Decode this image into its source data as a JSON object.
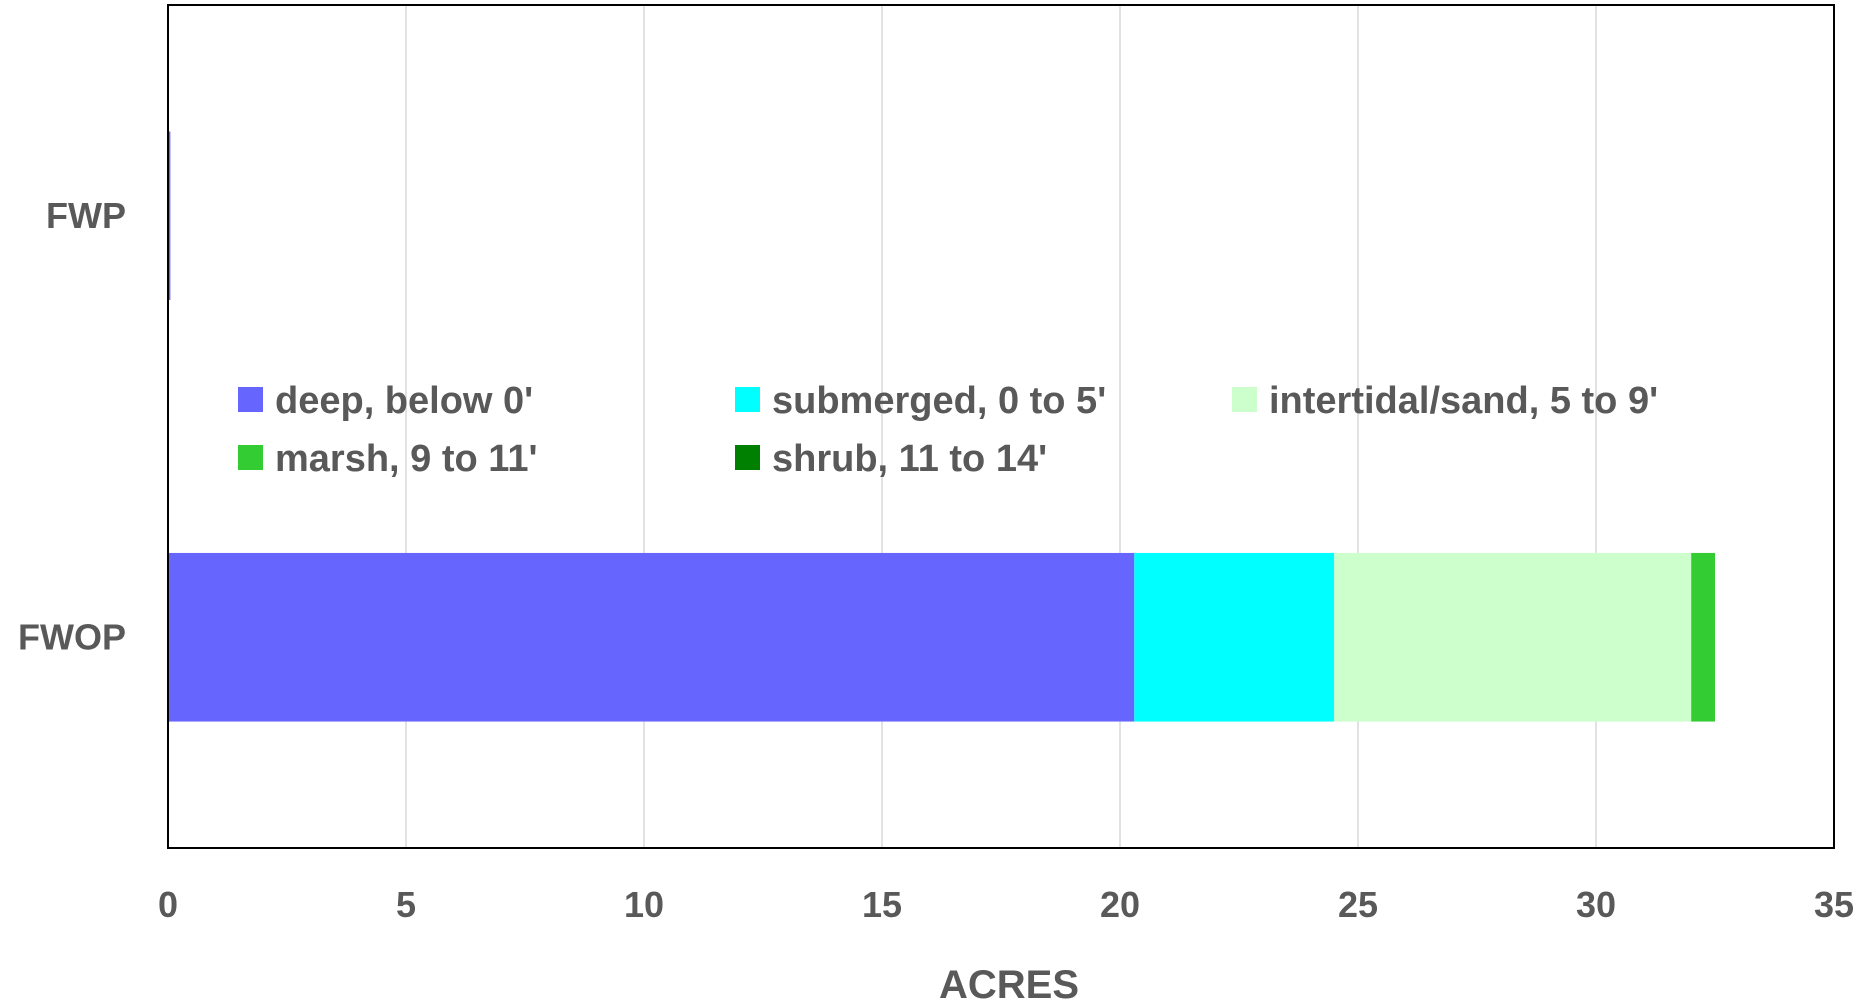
{
  "chart_data": {
    "type": "bar",
    "orientation": "horizontal",
    "stacked": true,
    "categories": [
      "FWP",
      "FWOP"
    ],
    "series": [
      {
        "name": "deep, below 0'",
        "color": "#6666ff",
        "values": [
          0.05,
          20.3
        ]
      },
      {
        "name": "submerged, 0 to 5'",
        "color": "#00ffff",
        "values": [
          0,
          4.2
        ]
      },
      {
        "name": "intertidal/sand, 5 to 9'",
        "color": "#ccffcc",
        "values": [
          0,
          7.5
        ]
      },
      {
        "name": "marsh, 9 to 11'",
        "color": "#33cc33",
        "values": [
          0,
          0.5
        ]
      },
      {
        "name": "shrub, 11 to 14'",
        "color": "#008000",
        "values": [
          0,
          0
        ]
      }
    ],
    "xlabel": "ACRES",
    "ylabel": "",
    "xlim": [
      0,
      35
    ],
    "xticks": [
      0,
      5,
      10,
      15,
      20,
      25,
      30,
      35
    ],
    "grid": "vertical",
    "legend_position": "center"
  }
}
